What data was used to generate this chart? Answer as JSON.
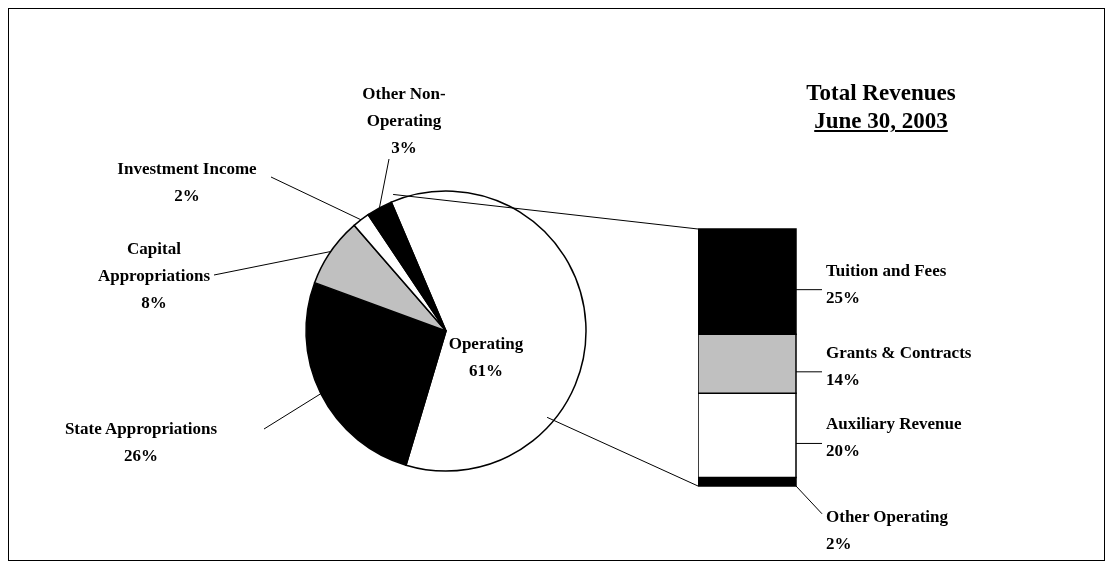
{
  "chart_data": [
    {
      "type": "pie",
      "title": "Total Revenues",
      "subtitle": "June 30, 2003",
      "categories": [
        "Operating",
        "State Appropriations",
        "Capital Appropriations",
        "Investment Income",
        "Other Non-Operating"
      ],
      "values": [
        61,
        26,
        8,
        2,
        3
      ],
      "value_labels": [
        "61%",
        "26%",
        "8%",
        "2%",
        "3%"
      ],
      "colors": [
        "#ffffff",
        "#000000",
        "#c0c0c0",
        "#ffffff",
        "#000000"
      ]
    },
    {
      "type": "bar",
      "stacked": true,
      "categories": [
        null
      ],
      "series": [
        {
          "name": "Other Operating",
          "color": "#000000",
          "values": [
            2
          ],
          "value_labels": [
            "2%"
          ]
        },
        {
          "name": "Auxiliary Revenue",
          "color": "#ffffff",
          "values": [
            20
          ],
          "value_labels": [
            "20%"
          ]
        },
        {
          "name": "Grants & Contracts",
          "color": "#c0c0c0",
          "values": [
            14
          ],
          "value_labels": [
            "14%"
          ]
        },
        {
          "name": "Tuition and Fees",
          "color": "#000000",
          "values": [
            25
          ],
          "value_labels": [
            "25%"
          ]
        }
      ]
    }
  ]
}
